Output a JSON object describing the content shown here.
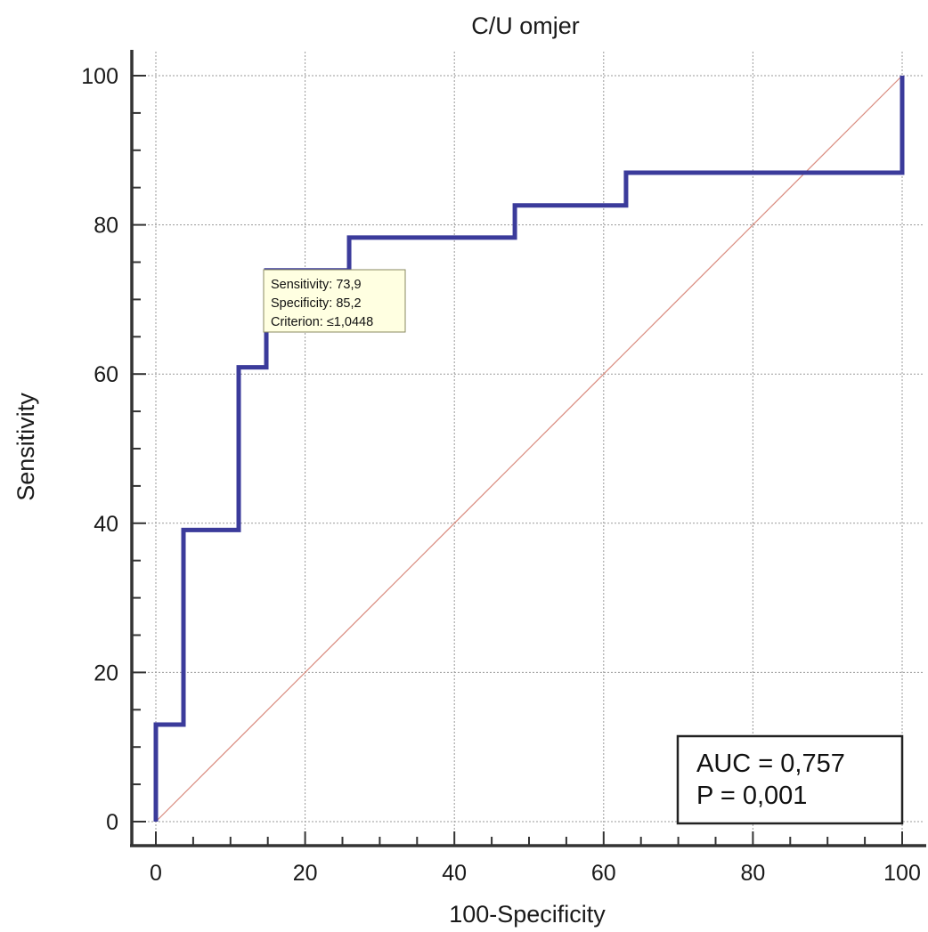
{
  "chart_data": {
    "type": "line",
    "title": "C/U omjer",
    "xlabel": "100-Specificity",
    "ylabel": "Sensitivity",
    "xlim": [
      0,
      100
    ],
    "ylim": [
      0,
      100
    ],
    "xticks": [
      0,
      20,
      40,
      60,
      80,
      100
    ],
    "yticks": [
      0,
      20,
      40,
      60,
      80,
      100
    ],
    "grid": true,
    "series": [
      {
        "style": "step",
        "color": "#3b3b9b",
        "x": [
          0,
          0,
          3.7,
          3.7,
          11.1,
          11.1,
          14.8,
          14.8,
          25.9,
          25.9,
          48.1,
          48.1,
          63,
          63,
          100,
          100
        ],
        "y": [
          0,
          13,
          13,
          39.1,
          39.1,
          60.9,
          60.9,
          73.9,
          73.9,
          78.3,
          78.3,
          82.6,
          82.6,
          87,
          87,
          100
        ]
      },
      {
        "style": "reference-diagonal",
        "color": "#d98b7e",
        "x": [
          0,
          100
        ],
        "y": [
          0,
          100
        ]
      }
    ],
    "annotation": {
      "lines": [
        "Sensitivity: 73,9",
        "Specificity: 85,2",
        "Criterion: ≤1,0448"
      ],
      "point": [
        14.8,
        73.9
      ]
    },
    "stats": {
      "lines": [
        "AUC = 0,757",
        "P = 0,001"
      ],
      "position": "bottom-right"
    }
  }
}
